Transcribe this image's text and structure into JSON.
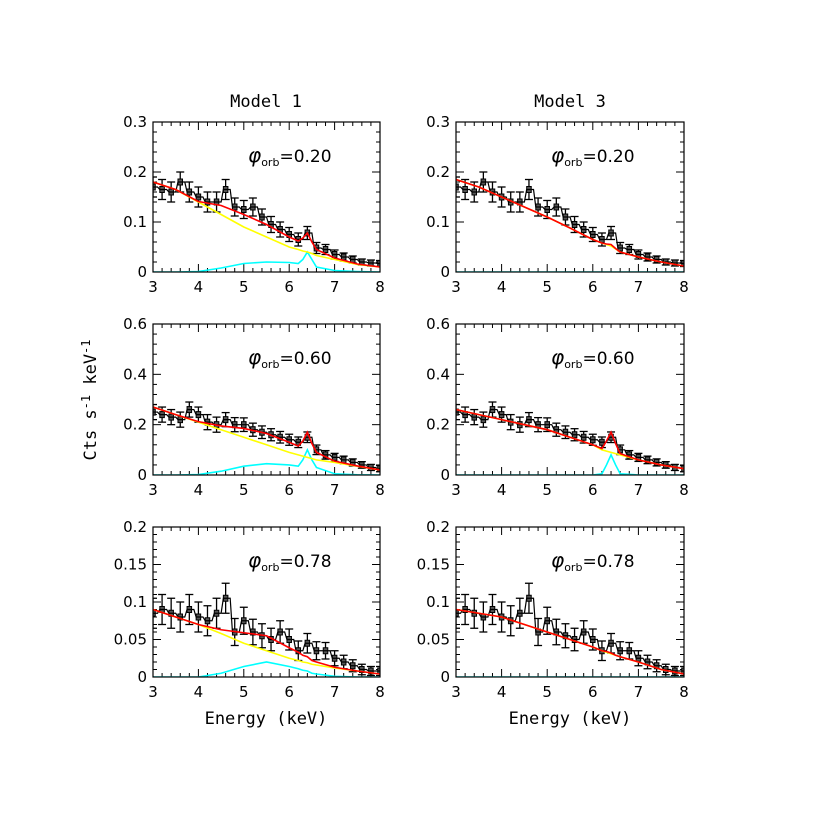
{
  "chart_data": {
    "type": "line",
    "ylabel": "Cts s-1 keV-1",
    "ylabel_parts": {
      "a": "Cts s",
      "b": "-1",
      "c": " keV",
      "d": "-1"
    },
    "xlabel": "Energy (keV)",
    "column_titles": [
      "Model 1",
      "Model 3"
    ],
    "colors": {
      "data": "#000000",
      "total": "#ff0000",
      "continuum": "#ffff00",
      "gaussian": "#00ffff"
    },
    "model_x": [
      3,
      3.5,
      4,
      4.5,
      5,
      5.5,
      6,
      6.2,
      6.3,
      6.4,
      6.5,
      6.6,
      7,
      7.5,
      8
    ],
    "data_x": [
      3.0,
      3.2,
      3.4,
      3.6,
      3.8,
      4.0,
      4.2,
      4.4,
      4.6,
      4.8,
      5.0,
      5.2,
      5.4,
      5.6,
      5.8,
      6.0,
      6.2,
      6.4,
      6.6,
      6.8,
      7.0,
      7.2,
      7.4,
      7.6,
      7.8,
      8.0
    ],
    "xlim": [
      3,
      8
    ],
    "xticks": [
      "3",
      "4",
      "5",
      "6",
      "7",
      "8"
    ],
    "panels": [
      {
        "model": "Model 1",
        "phase_symbol": "φ",
        "phase_sub": "orb",
        "phase_value": "=0.20",
        "ylim": [
          0,
          0.3
        ],
        "yticks": [
          "0",
          "0.1",
          "0.2",
          "0.3"
        ],
        "ytick_values": [
          0,
          0.1,
          0.2,
          0.3
        ],
        "data_y": [
          0.17,
          0.165,
          0.16,
          0.18,
          0.16,
          0.15,
          0.14,
          0.14,
          0.165,
          0.13,
          0.125,
          0.13,
          0.11,
          0.095,
          0.085,
          0.075,
          0.065,
          0.078,
          0.048,
          0.045,
          0.035,
          0.03,
          0.025,
          0.02,
          0.018,
          0.017
        ],
        "data_err": [
          0.02,
          0.02,
          0.02,
          0.02,
          0.02,
          0.02,
          0.02,
          0.02,
          0.02,
          0.018,
          0.018,
          0.018,
          0.016,
          0.016,
          0.015,
          0.014,
          0.013,
          0.013,
          0.011,
          0.01,
          0.009,
          0.008,
          0.007,
          0.006,
          0.006,
          0.006
        ],
        "continuum": [
          0.18,
          0.165,
          0.14,
          0.115,
          0.09,
          0.07,
          0.05,
          0.045,
          0.042,
          0.04,
          0.037,
          0.033,
          0.025,
          0.015,
          0.01
        ],
        "gaussian": [
          0,
          0,
          0.001,
          0.008,
          0.017,
          0.02,
          0.019,
          0.017,
          0.025,
          0.04,
          0.025,
          0.01,
          0.003,
          0.001,
          0
        ],
        "total": [
          0.18,
          0.165,
          0.141,
          0.133,
          0.115,
          0.095,
          0.07,
          0.062,
          0.068,
          0.078,
          0.06,
          0.045,
          0.028,
          0.016,
          0.01
        ]
      },
      {
        "model": "Model 3",
        "phase_symbol": "φ",
        "phase_sub": "orb",
        "phase_value": "=0.20",
        "ylim": [
          0,
          0.3
        ],
        "yticks": [
          "0",
          "0.1",
          "0.2",
          "0.3"
        ],
        "ytick_values": [
          0,
          0.1,
          0.2,
          0.3
        ],
        "data_y": [
          0.17,
          0.165,
          0.16,
          0.18,
          0.16,
          0.15,
          0.14,
          0.14,
          0.165,
          0.13,
          0.125,
          0.13,
          0.11,
          0.095,
          0.085,
          0.075,
          0.065,
          0.078,
          0.048,
          0.045,
          0.035,
          0.03,
          0.025,
          0.02,
          0.018,
          0.017
        ],
        "data_err": [
          0.02,
          0.02,
          0.02,
          0.02,
          0.02,
          0.02,
          0.02,
          0.02,
          0.02,
          0.018,
          0.018,
          0.018,
          0.016,
          0.016,
          0.015,
          0.014,
          0.013,
          0.013,
          0.011,
          0.01,
          0.009,
          0.008,
          0.007,
          0.006,
          0.006,
          0.006
        ],
        "continuum": [
          0.185,
          0.17,
          0.15,
          0.13,
          0.11,
          0.088,
          0.065,
          0.058,
          0.055,
          0.052,
          0.046,
          0.04,
          0.03,
          0.02,
          0.012
        ],
        "gaussian": [
          0,
          0,
          0,
          0,
          0,
          0,
          0,
          0,
          0,
          0,
          0,
          0,
          0,
          0,
          0
        ],
        "total": [
          0.185,
          0.17,
          0.15,
          0.13,
          0.11,
          0.088,
          0.065,
          0.058,
          0.056,
          0.055,
          0.047,
          0.04,
          0.03,
          0.02,
          0.012
        ]
      },
      {
        "model": "Model 1",
        "phase_symbol": "φ",
        "phase_sub": "orb",
        "phase_value": "=0.60",
        "ylim": [
          0,
          0.6
        ],
        "yticks": [
          "0",
          "0.2",
          "0.4",
          "0.6"
        ],
        "ytick_values": [
          0,
          0.2,
          0.4,
          0.6
        ],
        "data_y": [
          0.25,
          0.24,
          0.23,
          0.22,
          0.26,
          0.24,
          0.21,
          0.2,
          0.22,
          0.2,
          0.2,
          0.18,
          0.17,
          0.16,
          0.15,
          0.14,
          0.13,
          0.15,
          0.1,
          0.08,
          0.07,
          0.06,
          0.05,
          0.04,
          0.03,
          0.025
        ],
        "data_err": [
          0.03,
          0.03,
          0.03,
          0.03,
          0.03,
          0.03,
          0.03,
          0.03,
          0.028,
          0.028,
          0.027,
          0.026,
          0.025,
          0.024,
          0.023,
          0.022,
          0.021,
          0.021,
          0.019,
          0.017,
          0.016,
          0.015,
          0.014,
          0.013,
          0.012,
          0.012
        ],
        "continuum": [
          0.27,
          0.24,
          0.21,
          0.18,
          0.15,
          0.12,
          0.09,
          0.08,
          0.075,
          0.07,
          0.065,
          0.06,
          0.05,
          0.035,
          0.02
        ],
        "gaussian": [
          0,
          0,
          0.002,
          0.015,
          0.035,
          0.045,
          0.04,
          0.035,
          0.06,
          0.1,
          0.06,
          0.03,
          0.005,
          0.001,
          0
        ],
        "total": [
          0.27,
          0.24,
          0.212,
          0.195,
          0.185,
          0.165,
          0.13,
          0.115,
          0.135,
          0.17,
          0.125,
          0.09,
          0.055,
          0.036,
          0.02
        ]
      },
      {
        "model": "Model 3",
        "phase_symbol": "φ",
        "phase_sub": "orb",
        "phase_value": "=0.60",
        "ylim": [
          0,
          0.6
        ],
        "yticks": [
          "0",
          "0.2",
          "0.4",
          "0.6"
        ],
        "ytick_values": [
          0,
          0.2,
          0.4,
          0.6
        ],
        "data_y": [
          0.25,
          0.24,
          0.23,
          0.22,
          0.26,
          0.24,
          0.21,
          0.2,
          0.22,
          0.2,
          0.2,
          0.18,
          0.17,
          0.16,
          0.15,
          0.14,
          0.13,
          0.15,
          0.1,
          0.08,
          0.07,
          0.06,
          0.05,
          0.04,
          0.03,
          0.025
        ],
        "data_err": [
          0.03,
          0.03,
          0.03,
          0.03,
          0.03,
          0.03,
          0.03,
          0.03,
          0.028,
          0.028,
          0.027,
          0.026,
          0.025,
          0.024,
          0.023,
          0.022,
          0.021,
          0.021,
          0.019,
          0.017,
          0.016,
          0.015,
          0.014,
          0.013,
          0.012,
          0.012
        ],
        "continuum": [
          0.26,
          0.24,
          0.22,
          0.2,
          0.18,
          0.15,
          0.12,
          0.1,
          0.095,
          0.09,
          0.085,
          0.08,
          0.06,
          0.04,
          0.025
        ],
        "gaussian": [
          0,
          0,
          0,
          0,
          0,
          0,
          0,
          0.005,
          0.04,
          0.08,
          0.04,
          0.005,
          0,
          0,
          0
        ],
        "total": [
          0.26,
          0.24,
          0.22,
          0.2,
          0.18,
          0.15,
          0.12,
          0.105,
          0.135,
          0.17,
          0.125,
          0.085,
          0.06,
          0.04,
          0.025
        ]
      },
      {
        "model": "Model 1",
        "phase_symbol": "φ",
        "phase_sub": "orb",
        "phase_value": "=0.78",
        "ylim": [
          0,
          0.2
        ],
        "yticks": [
          "0",
          "0.05",
          "0.1",
          "0.15",
          "0.2"
        ],
        "ytick_values": [
          0,
          0.05,
          0.1,
          0.15,
          0.2
        ],
        "data_y": [
          0.085,
          0.09,
          0.085,
          0.08,
          0.09,
          0.08,
          0.075,
          0.085,
          0.105,
          0.06,
          0.075,
          0.06,
          0.055,
          0.05,
          0.06,
          0.05,
          0.035,
          0.045,
          0.035,
          0.035,
          0.025,
          0.02,
          0.015,
          0.01,
          0.008,
          0.008
        ],
        "data_err": [
          0.02,
          0.02,
          0.02,
          0.02,
          0.02,
          0.02,
          0.02,
          0.02,
          0.02,
          0.018,
          0.018,
          0.017,
          0.016,
          0.015,
          0.015,
          0.014,
          0.013,
          0.013,
          0.012,
          0.011,
          0.01,
          0.009,
          0.008,
          0.007,
          0.006,
          0.006
        ],
        "continuum": [
          0.09,
          0.08,
          0.07,
          0.058,
          0.045,
          0.035,
          0.025,
          0.022,
          0.02,
          0.019,
          0.017,
          0.016,
          0.012,
          0.008,
          0.004
        ],
        "gaussian": [
          0,
          0,
          0,
          0.005,
          0.014,
          0.02,
          0.014,
          0.011,
          0.009,
          0.008,
          0.005,
          0.004,
          0.001,
          0,
          0
        ],
        "total": [
          0.09,
          0.08,
          0.07,
          0.063,
          0.059,
          0.055,
          0.039,
          0.033,
          0.029,
          0.027,
          0.022,
          0.02,
          0.013,
          0.008,
          0.004
        ]
      },
      {
        "model": "Model 3",
        "phase_symbol": "φ",
        "phase_sub": "orb",
        "phase_value": "=0.78",
        "ylim": [
          0,
          0.2
        ],
        "yticks": [
          "0",
          "0.05",
          "0.1",
          "0.15",
          "0.2"
        ],
        "ytick_values": [
          0,
          0.05,
          0.1,
          0.15,
          0.2
        ],
        "data_y": [
          0.085,
          0.09,
          0.085,
          0.08,
          0.09,
          0.08,
          0.075,
          0.085,
          0.105,
          0.06,
          0.075,
          0.06,
          0.055,
          0.05,
          0.06,
          0.05,
          0.035,
          0.045,
          0.035,
          0.035,
          0.025,
          0.02,
          0.015,
          0.01,
          0.008,
          0.008
        ],
        "data_err": [
          0.02,
          0.02,
          0.02,
          0.02,
          0.02,
          0.02,
          0.02,
          0.02,
          0.02,
          0.018,
          0.018,
          0.017,
          0.016,
          0.015,
          0.015,
          0.014,
          0.013,
          0.013,
          0.012,
          0.011,
          0.01,
          0.009,
          0.008,
          0.007,
          0.006,
          0.006
        ],
        "continuum": [
          0.09,
          0.085,
          0.08,
          0.07,
          0.06,
          0.05,
          0.04,
          0.035,
          0.033,
          0.031,
          0.029,
          0.027,
          0.02,
          0.01,
          0.004
        ],
        "gaussian": [
          0,
          0,
          0,
          0,
          0,
          0,
          0,
          0,
          0,
          0,
          0,
          0,
          0,
          0,
          0
        ],
        "total": [
          0.09,
          0.085,
          0.08,
          0.07,
          0.06,
          0.05,
          0.04,
          0.035,
          0.034,
          0.032,
          0.029,
          0.027,
          0.02,
          0.01,
          0.004
        ]
      }
    ]
  }
}
